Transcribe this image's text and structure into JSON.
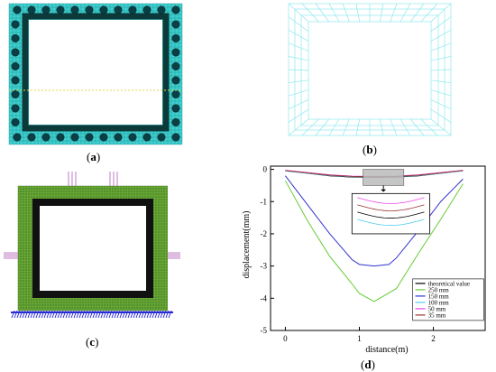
{
  "captions": {
    "a": "a",
    "b": "b",
    "c": "c",
    "d": "d"
  },
  "colors": {
    "mesh_cyan": "#3fd0d0",
    "mesh_cyan_light": "#8fe8ee",
    "frame_dark": "#0c3a3a",
    "hole_fill": "#0b3f46",
    "mesh_green": "#6fb13a",
    "mesh_black": "#111111",
    "bc_blue": "#2a2ad8",
    "load_purple": "#b05ab5"
  },
  "chart_data": {
    "type": "line",
    "xlabel": "distance(m)",
    "ylabel": "displacement(mm)",
    "xlim": [
      -0.2,
      2.7
    ],
    "ylim": [
      -5,
      0.1
    ],
    "xticks": [
      0,
      1,
      2
    ],
    "yticks": [
      0,
      -1,
      -2,
      -3,
      -4,
      -5
    ],
    "legend_position": "bottom-right",
    "series": [
      {
        "name": "theoretical value",
        "color": "#000000",
        "x": [
          0,
          0.3,
          0.6,
          0.9,
          1.2,
          1.5,
          1.8,
          2.1,
          2.4
        ],
        "y": [
          -0.04,
          -0.12,
          -0.2,
          -0.24,
          -0.25,
          -0.24,
          -0.2,
          -0.12,
          -0.04
        ]
      },
      {
        "name": "250 mm",
        "color": "#66cc33",
        "x": [
          0,
          0.3,
          0.6,
          0.9,
          1.0,
          1.2,
          1.5,
          1.8,
          2.1,
          2.4
        ],
        "y": [
          -0.35,
          -1.6,
          -2.7,
          -3.55,
          -3.85,
          -4.1,
          -3.7,
          -2.6,
          -1.55,
          -0.45
        ]
      },
      {
        "name": "150 mm",
        "color": "#3333cc",
        "x": [
          0,
          0.3,
          0.6,
          0.9,
          1.0,
          1.2,
          1.4,
          1.5,
          1.8,
          2.1,
          2.4
        ],
        "y": [
          -0.2,
          -1.1,
          -2.0,
          -2.8,
          -2.95,
          -3.0,
          -2.95,
          -2.75,
          -1.9,
          -1.0,
          -0.3
        ]
      },
      {
        "name": "100 mm",
        "color": "#55ccee",
        "x": [
          0,
          0.3,
          0.6,
          0.9,
          1.2,
          1.5,
          1.8,
          2.1,
          2.4
        ],
        "y": [
          -0.05,
          -0.12,
          -0.19,
          -0.23,
          -0.24,
          -0.23,
          -0.19,
          -0.12,
          -0.05
        ]
      },
      {
        "name": "50 mm",
        "color": "#ee44ee",
        "x": [
          0,
          0.3,
          0.6,
          0.9,
          1.2,
          1.5,
          1.8,
          2.1,
          2.4
        ],
        "y": [
          -0.03,
          -0.1,
          -0.17,
          -0.21,
          -0.22,
          -0.21,
          -0.17,
          -0.1,
          -0.03
        ]
      },
      {
        "name": "35 mm",
        "color": "#993333",
        "x": [
          0,
          0.3,
          0.6,
          0.9,
          1.2,
          1.5,
          1.8,
          2.1,
          2.4
        ],
        "y": [
          -0.035,
          -0.11,
          -0.18,
          -0.22,
          -0.23,
          -0.22,
          -0.18,
          -0.11,
          -0.035
        ]
      }
    ]
  }
}
